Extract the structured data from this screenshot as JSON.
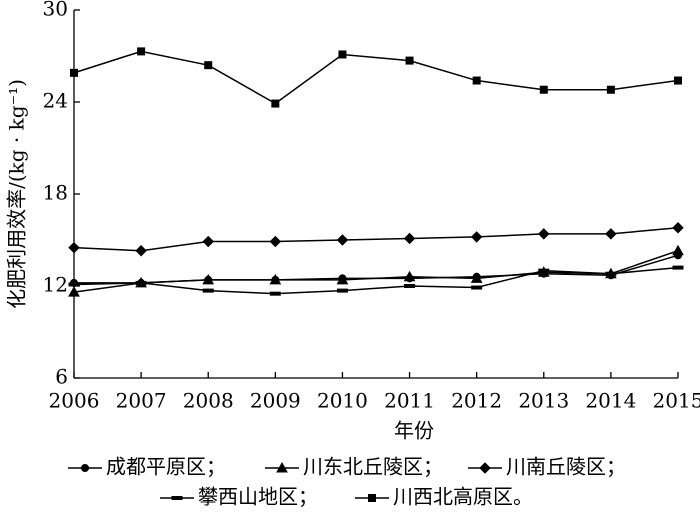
{
  "chart_data": {
    "type": "line",
    "x_label": "年份",
    "y_label": "化肥利用效率/(kg · kg⁻¹)",
    "categories": [
      "2006",
      "2007",
      "2008",
      "2009",
      "2010",
      "2011",
      "2012",
      "2013",
      "2014",
      "2015"
    ],
    "ylim": [
      6,
      30
    ],
    "yticks": [
      6,
      12,
      18,
      24,
      30
    ],
    "series": [
      {
        "name": "成都平原区；",
        "color": "#000",
        "marker": "circle",
        "values": [
          12.2,
          12.2,
          12.4,
          12.4,
          12.5,
          12.5,
          12.6,
          12.8,
          12.7,
          14.0
        ]
      },
      {
        "name": "川东北丘陵区；",
        "color": "#000",
        "marker": "triangle",
        "values": [
          11.6,
          12.2,
          12.4,
          12.4,
          12.4,
          12.6,
          12.5,
          12.9,
          12.8,
          14.3
        ]
      },
      {
        "name": "川南丘陵区；",
        "color": "#000",
        "marker": "diamond",
        "values": [
          14.5,
          14.3,
          14.9,
          14.9,
          15.0,
          15.1,
          15.2,
          15.4,
          15.4,
          15.8
        ]
      },
      {
        "name": "攀西山地区；",
        "color": "#000",
        "marker": "dash",
        "values": [
          12.1,
          12.2,
          11.7,
          11.5,
          11.7,
          12.0,
          11.9,
          13.0,
          12.8,
          13.2
        ]
      },
      {
        "name": "川西北高原区。",
        "color": "#000",
        "marker": "square",
        "values": [
          25.9,
          27.3,
          26.4,
          23.9,
          27.1,
          26.7,
          25.4,
          24.8,
          24.8,
          25.4
        ]
      }
    ]
  }
}
